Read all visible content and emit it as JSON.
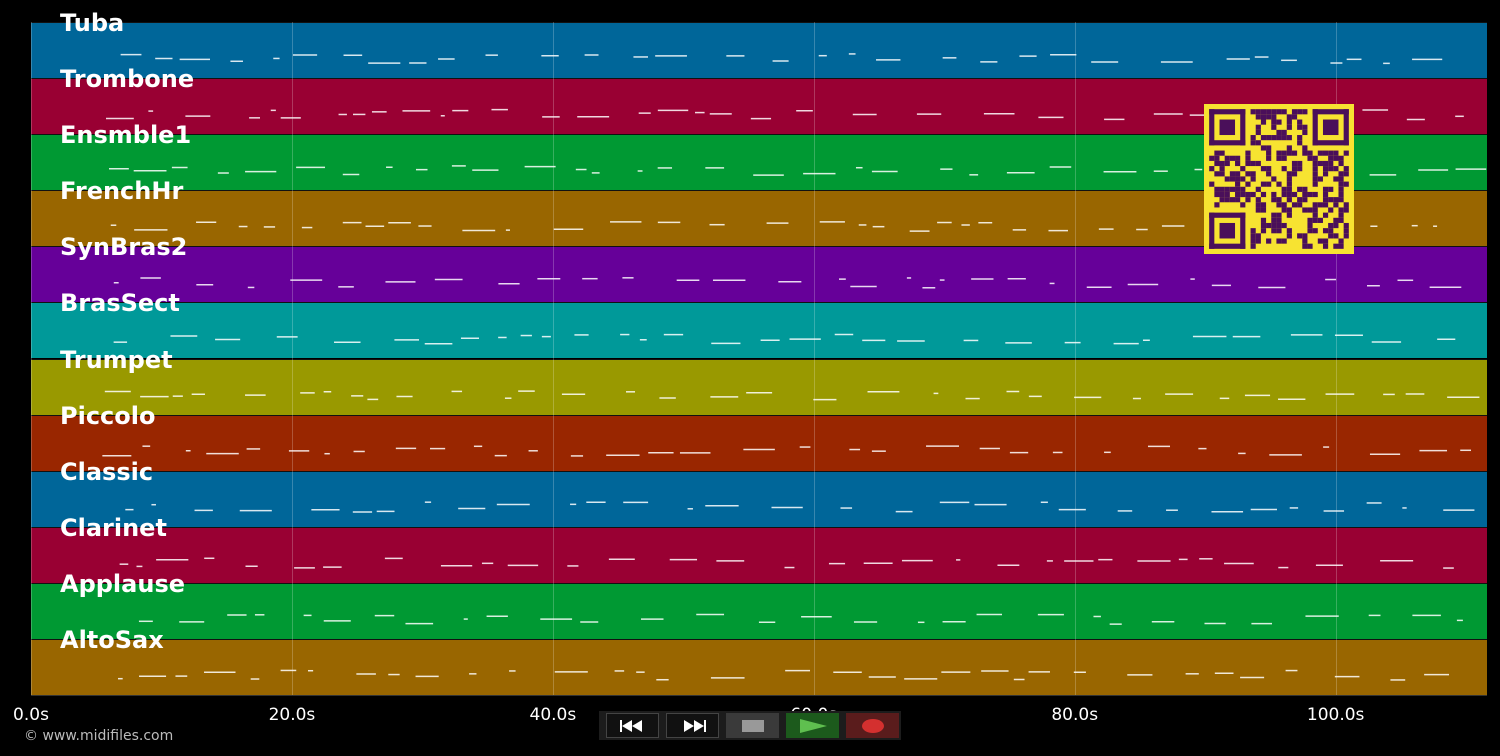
{
  "tracks": [
    {
      "name": "Tuba",
      "color": "#006699"
    },
    {
      "name": "Trombone",
      "color": "#990033"
    },
    {
      "name": "Ensmble1",
      "color": "#009933"
    },
    {
      "name": "FrenchHr",
      "color": "#996600"
    },
    {
      "name": "SynBras2",
      "color": "#660099"
    },
    {
      "name": "BrasSect",
      "color": "#009999"
    },
    {
      "name": "Trumpet",
      "color": "#999900"
    },
    {
      "name": "Piccolo",
      "color": "#992600"
    },
    {
      "name": "Classic",
      "color": "#006699"
    },
    {
      "name": "Clarinet",
      "color": "#990033"
    },
    {
      "name": "Applause",
      "color": "#009933"
    },
    {
      "name": "AltoSax",
      "color": "#996600"
    }
  ],
  "time_axis": {
    "ticks": [
      "0.0s",
      "20.0s",
      "40.0s",
      "60.0s",
      "80.0s",
      "100.0s"
    ],
    "tick_seconds": [
      0,
      20,
      40,
      60,
      80,
      100
    ],
    "max_seconds": 111.6
  },
  "footer": {
    "copyright": "© www.midifiles.com"
  },
  "transport": {
    "rewind_icon": "rewind-icon",
    "forward_icon": "fast-forward-icon",
    "stop_icon": "stop-icon",
    "play_icon": "play-icon",
    "record_icon": "record-icon"
  },
  "colors": {
    "qr_bg": "#f7e331",
    "qr_fg": "#4a0f5a",
    "play_accent": "#5fbf4f",
    "record_accent": "#d4302f"
  }
}
